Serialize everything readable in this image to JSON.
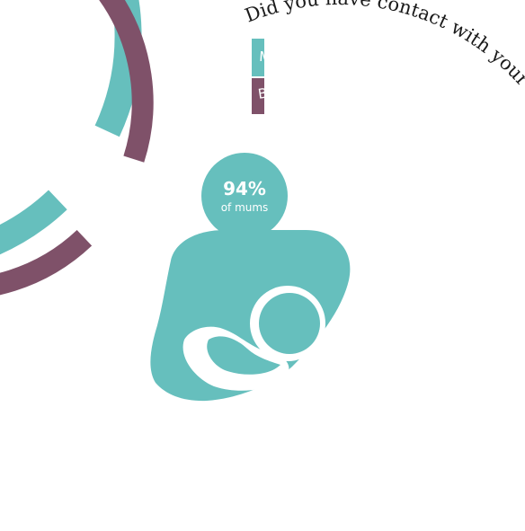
{
  "chart_data": {
    "type": "radial-bar",
    "title": "Did you have contact with your baby shortly after the birth?",
    "series": [
      {
        "name": "Mums said yes...",
        "value": 94,
        "unit": "%",
        "color": "#66bfbd"
      },
      {
        "name": "Birthing partners said yes...",
        "value": 92,
        "unit": "%",
        "color": "#7f5169"
      }
    ],
    "range": [
      0,
      100
    ],
    "callout": {
      "value": "94%",
      "label": "of mums"
    }
  },
  "colors": {
    "teal": "#66bfbd",
    "plum": "#7f5169",
    "background": "#ffffff"
  },
  "icons": {
    "center": "mother-breastfeeding-baby-icon"
  }
}
